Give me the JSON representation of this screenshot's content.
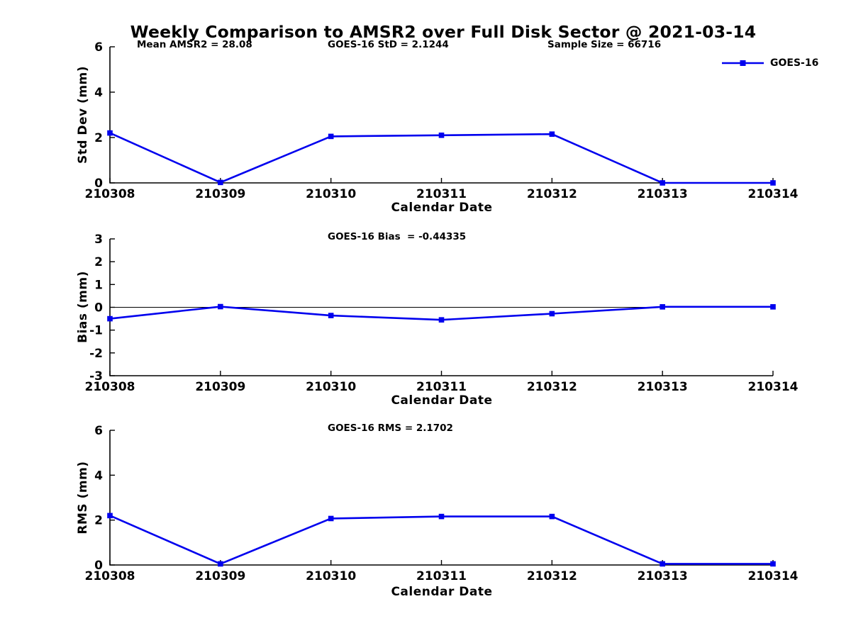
{
  "figure": {
    "title": "Weekly Comparison to AMSR2 over Full Disk Sector @ 2021-03-14"
  },
  "colors": {
    "line": "#0000EE",
    "axis": "#000000",
    "text": "#000000"
  },
  "legend": {
    "label": "GOES-16",
    "position": "top-right"
  },
  "chart_data": [
    {
      "type": "line",
      "ylabel": "Std Dev (mm)",
      "xlabel": "Calendar Date",
      "ylim": [
        0,
        6
      ],
      "yticks": [
        0,
        2,
        4,
        6
      ],
      "categories": [
        "210308",
        "210309",
        "210310",
        "210311",
        "210312",
        "210313",
        "210314"
      ],
      "series": [
        {
          "name": "GOES-16",
          "marker": "square",
          "values": [
            2.2,
            0.02,
            2.05,
            2.1,
            2.15,
            0.0,
            0.0
          ]
        }
      ],
      "annotations": [
        {
          "text": "Mean AMSR2 = 28.08"
        },
        {
          "text": "GOES-16 StD = 2.1244"
        },
        {
          "text": "Sample Size = 66716"
        }
      ],
      "grid": false,
      "legend_entries": [
        "GOES-16"
      ]
    },
    {
      "type": "line",
      "ylabel": "Bias (mm)",
      "xlabel": "Calendar Date",
      "ylim": [
        -3,
        3
      ],
      "yticks": [
        -3,
        -2,
        -1,
        0,
        1,
        2,
        3
      ],
      "zero_line": true,
      "categories": [
        "210308",
        "210309",
        "210310",
        "210311",
        "210312",
        "210313",
        "210314"
      ],
      "series": [
        {
          "name": "GOES-16",
          "marker": "square",
          "values": [
            -0.5,
            0.03,
            -0.36,
            -0.55,
            -0.28,
            0.02,
            0.02
          ]
        }
      ],
      "annotations": [
        {
          "text": "GOES-16 Bias  = -0.44335"
        }
      ],
      "grid": false
    },
    {
      "type": "line",
      "ylabel": "RMS (mm)",
      "xlabel": "Calendar Date",
      "ylim": [
        0,
        6
      ],
      "yticks": [
        0,
        2,
        4,
        6
      ],
      "categories": [
        "210308",
        "210309",
        "210310",
        "210311",
        "210312",
        "210313",
        "210314"
      ],
      "series": [
        {
          "name": "GOES-16",
          "marker": "square",
          "values": [
            2.2,
            0.05,
            2.07,
            2.16,
            2.16,
            0.05,
            0.05
          ]
        }
      ],
      "annotations": [
        {
          "text": "GOES-16 RMS = 2.1702"
        }
      ],
      "grid": false
    }
  ]
}
